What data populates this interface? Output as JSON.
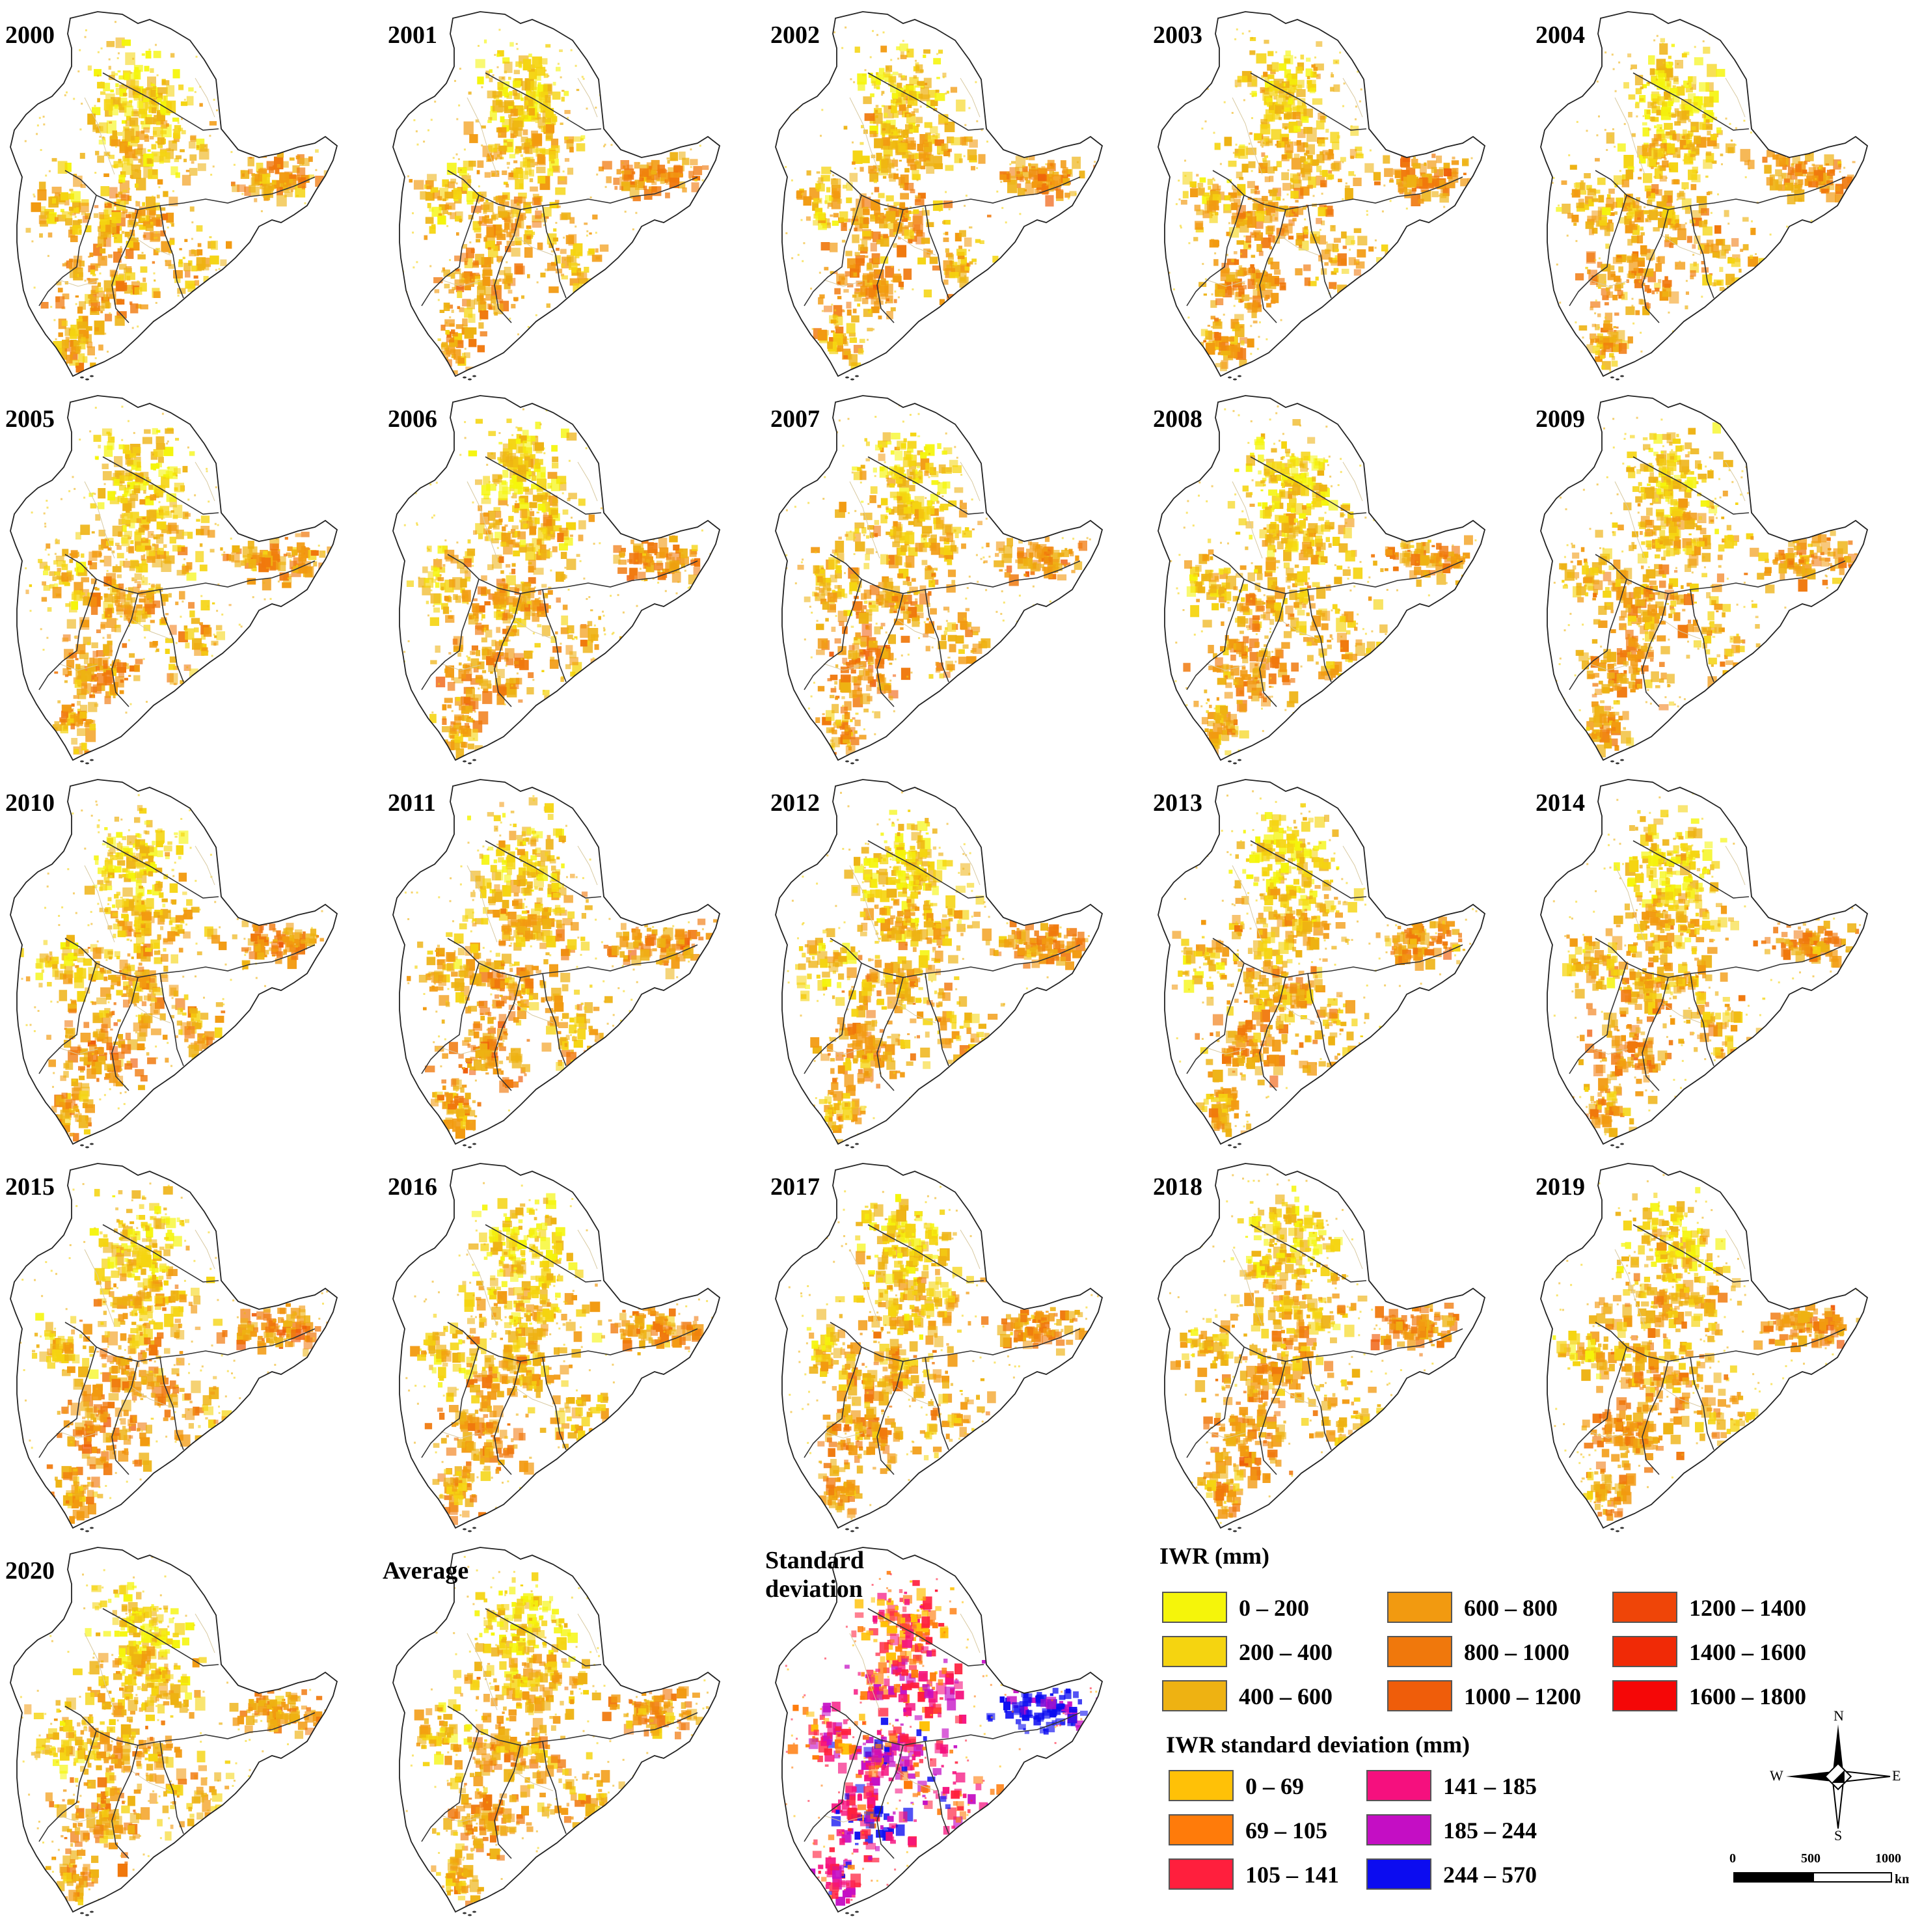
{
  "panels": [
    {
      "label": "2000",
      "kind": "iwr"
    },
    {
      "label": "2001",
      "kind": "iwr"
    },
    {
      "label": "2002",
      "kind": "iwr"
    },
    {
      "label": "2003",
      "kind": "iwr"
    },
    {
      "label": "2004",
      "kind": "iwr"
    },
    {
      "label": "2005",
      "kind": "iwr"
    },
    {
      "label": "2006",
      "kind": "iwr"
    },
    {
      "label": "2007",
      "kind": "iwr"
    },
    {
      "label": "2008",
      "kind": "iwr"
    },
    {
      "label": "2009",
      "kind": "iwr"
    },
    {
      "label": "2010",
      "kind": "iwr"
    },
    {
      "label": "2011",
      "kind": "iwr"
    },
    {
      "label": "2012",
      "kind": "iwr"
    },
    {
      "label": "2013",
      "kind": "iwr"
    },
    {
      "label": "2014",
      "kind": "iwr"
    },
    {
      "label": "2015",
      "kind": "iwr"
    },
    {
      "label": "2016",
      "kind": "iwr"
    },
    {
      "label": "2017",
      "kind": "iwr"
    },
    {
      "label": "2018",
      "kind": "iwr"
    },
    {
      "label": "2019",
      "kind": "iwr"
    },
    {
      "label": "2020",
      "kind": "iwr"
    },
    {
      "label": "Average",
      "kind": "iwr"
    },
    {
      "label": "Standard deviation",
      "kind": "sd"
    }
  ],
  "legend_iwr": {
    "title": "IWR (mm)",
    "items": [
      {
        "label": "0 – 200",
        "color": "#f5f50a"
      },
      {
        "label": "200 – 400",
        "color": "#f5d410"
      },
      {
        "label": "400 – 600",
        "color": "#eeb212"
      },
      {
        "label": "600 – 800",
        "color": "#f29a10"
      },
      {
        "label": "800 – 1000",
        "color": "#f0780c"
      },
      {
        "label": "1000 – 1200",
        "color": "#ef5d0a"
      },
      {
        "label": "1200 – 1400",
        "color": "#ef4508"
      },
      {
        "label": "1400 – 1600",
        "color": "#f02a06"
      },
      {
        "label": "1600 – 1800",
        "color": "#f50707"
      }
    ]
  },
  "legend_sd": {
    "title": "IWR standard deviation (mm)",
    "items": [
      {
        "label": "0 – 69",
        "color": "#ffc107"
      },
      {
        "label": "69 – 105",
        "color": "#ff7b0a"
      },
      {
        "label": "105 – 141",
        "color": "#ff1f3d"
      },
      {
        "label": "141 – 185",
        "color": "#f5107e"
      },
      {
        "label": "185 – 244",
        "color": "#c40ec4"
      },
      {
        "label": "244 – 570",
        "color": "#0c0cf0"
      }
    ]
  },
  "compass": {
    "n": "N",
    "s": "S",
    "e": "E",
    "w": "W"
  },
  "scale_bar": {
    "ticks": [
      "0",
      "500",
      "1000"
    ],
    "unit": "km"
  }
}
